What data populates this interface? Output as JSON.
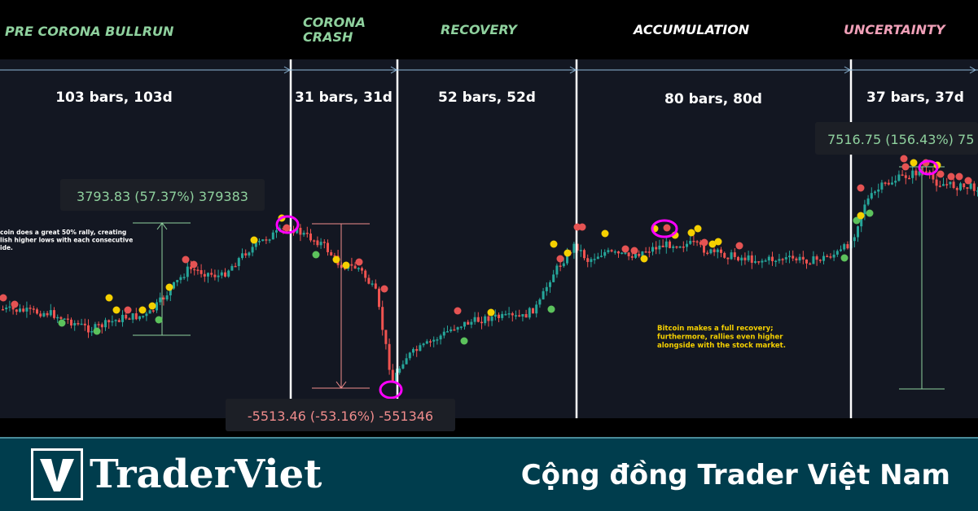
{
  "chart_data": {
    "type": "candlestick",
    "phases": [
      {
        "label": "PRE CORONA BULLRUN",
        "color": "#8fd19e",
        "bars": "103 bars, 103d"
      },
      {
        "label": "CORONA\nCRASH",
        "color": "#8fd19e",
        "bars": "31 bars, 31d"
      },
      {
        "label": "RECOVERY",
        "color": "#8fd19e",
        "bars": "52 bars, 52d"
      },
      {
        "label": "ACCUMULATION",
        "color": "#ffffff",
        "bars": "80 bars, 80d"
      },
      {
        "label": "UNCERTAINTY",
        "color": "#f0a0b8",
        "bars": "37 bars, 37d"
      }
    ],
    "measures": [
      {
        "text": "3793.83 (57.37%) 379383",
        "color": "#8fd19e"
      },
      {
        "text": "-5513.46 (-53.16%) -551346",
        "color": "#f08c8c"
      },
      {
        "text": "7516.75 (156.43%) 75",
        "color": "#8fd19e"
      }
    ],
    "annotations": [
      {
        "text": "coin does a great 50% rally, creating\nlish higher lows with each consecutive\nide.",
        "color": "#ffffff"
      },
      {
        "text": "Bitcoin makes a full recovery;\nfurthermore, rallies even higher\nalongside with the stock market.",
        "color": "#f5d000"
      }
    ],
    "colors": {
      "up": "#26a69a",
      "down": "#ef5350",
      "background": "#131722",
      "dot_red": "#e55353",
      "dot_yellow": "#f5d000",
      "dot_green": "#5cc25c",
      "highlight": "#ff00ff"
    }
  },
  "footer": {
    "brand": "TraderViet",
    "slogan": "Cộng đồng Trader Việt Nam"
  }
}
